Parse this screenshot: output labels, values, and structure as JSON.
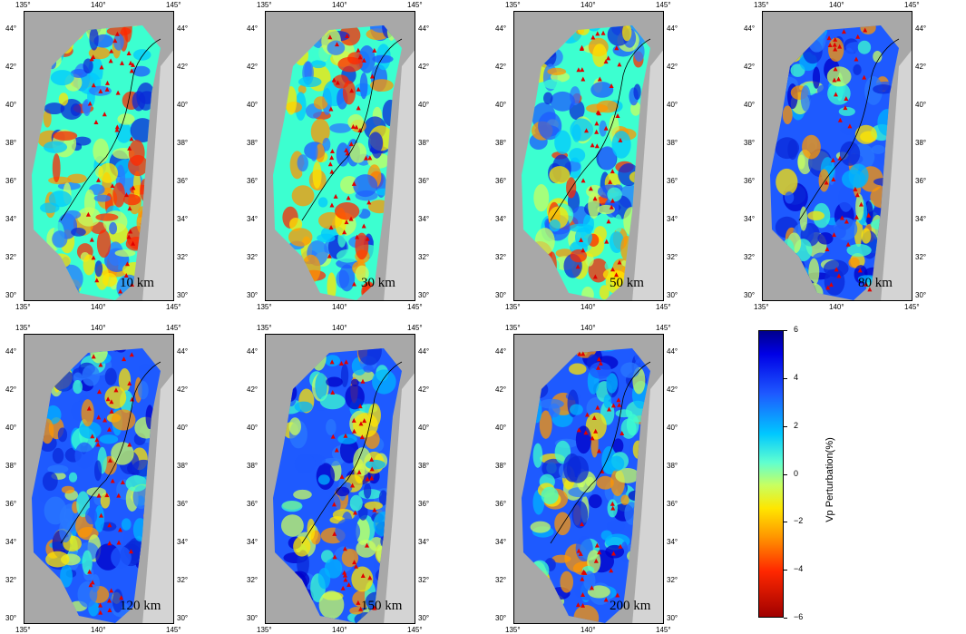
{
  "lon_labels": [
    "135°",
    "140°",
    "145°"
  ],
  "lat_labels": [
    "44°",
    "42°",
    "40°",
    "38°",
    "36°",
    "34°",
    "32°",
    "30°"
  ],
  "panels": [
    {
      "depth": "10 km"
    },
    {
      "depth": "30 km"
    },
    {
      "depth": "50 km"
    },
    {
      "depth": "80 km"
    },
    {
      "depth": "120 km"
    },
    {
      "depth": "150 km"
    },
    {
      "depth": "200 km"
    }
  ],
  "colorbar": {
    "label": "Vp Perturbation(%)",
    "ticks": [
      "6",
      "4",
      "2",
      "0",
      "−2",
      "−4",
      "−6"
    ],
    "colors": {
      "max": "#00008c",
      "zero": "#c8ff60",
      "min": "#a00000"
    }
  }
}
